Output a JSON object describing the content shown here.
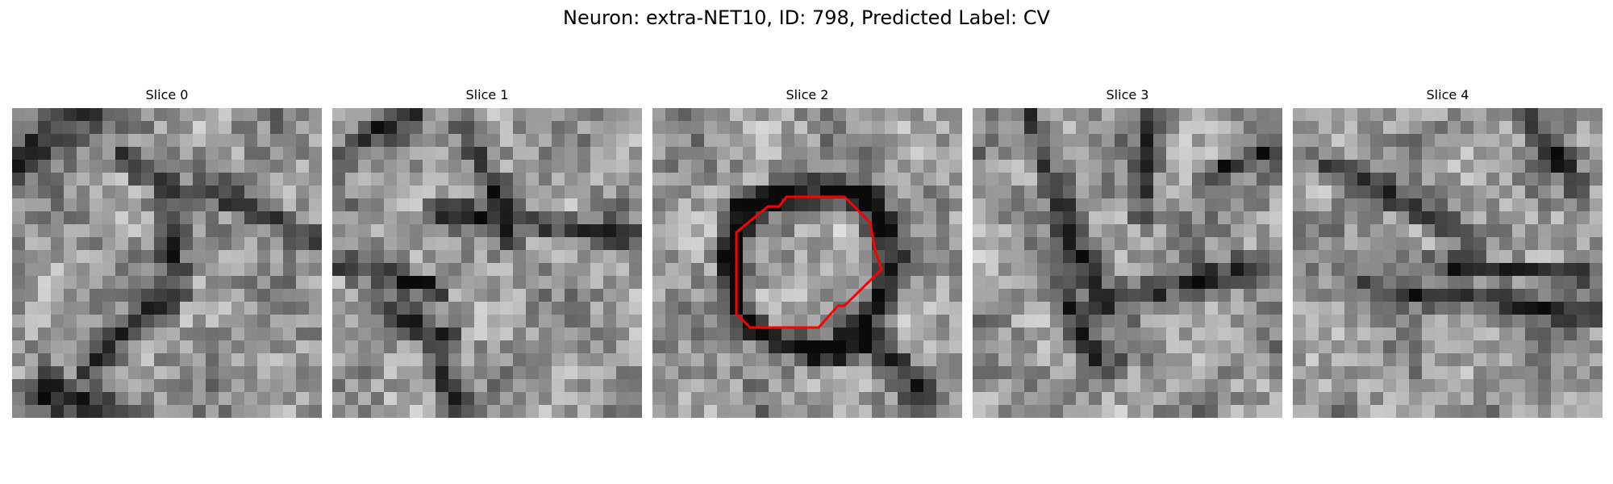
{
  "figure": {
    "title": "Neuron: extra-NET10, ID: 798, Predicted Label: CV"
  },
  "panels": [
    {
      "title": "Slice 0",
      "has_contour": false
    },
    {
      "title": "Slice 1",
      "has_contour": false
    },
    {
      "title": "Slice 2",
      "has_contour": true
    },
    {
      "title": "Slice 3",
      "has_contour": false
    },
    {
      "title": "Slice 4",
      "has_contour": false
    }
  ],
  "image": {
    "colormap": "gray",
    "grid_size": 24,
    "contour_color": "#ff0000"
  }
}
